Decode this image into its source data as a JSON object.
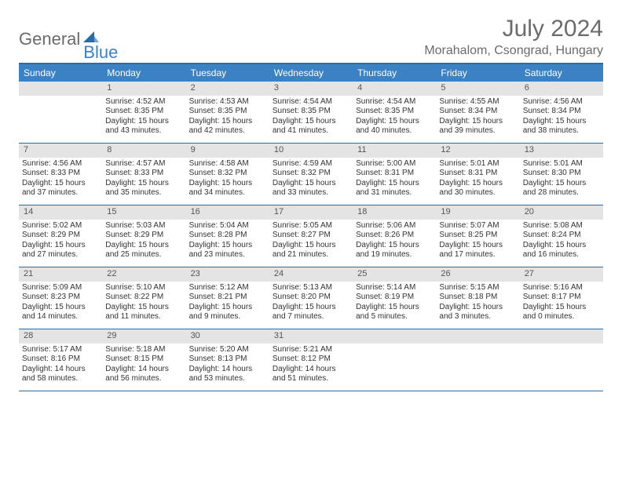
{
  "logo": {
    "text_gray": "General",
    "text_blue": "Blue"
  },
  "title": "July 2024",
  "location": "Morahalom, Csongrad, Hungary",
  "colors": {
    "header_bg": "#3b82c4",
    "header_border": "#2d6ca2",
    "daynum_bg": "#e4e4e4",
    "text": "#333333",
    "muted": "#6b6b6b"
  },
  "day_names": [
    "Sunday",
    "Monday",
    "Tuesday",
    "Wednesday",
    "Thursday",
    "Friday",
    "Saturday"
  ],
  "weeks": [
    [
      null,
      {
        "n": "1",
        "sunrise": "4:52 AM",
        "sunset": "8:35 PM",
        "daylight": "15 hours and 43 minutes."
      },
      {
        "n": "2",
        "sunrise": "4:53 AM",
        "sunset": "8:35 PM",
        "daylight": "15 hours and 42 minutes."
      },
      {
        "n": "3",
        "sunrise": "4:54 AM",
        "sunset": "8:35 PM",
        "daylight": "15 hours and 41 minutes."
      },
      {
        "n": "4",
        "sunrise": "4:54 AM",
        "sunset": "8:35 PM",
        "daylight": "15 hours and 40 minutes."
      },
      {
        "n": "5",
        "sunrise": "4:55 AM",
        "sunset": "8:34 PM",
        "daylight": "15 hours and 39 minutes."
      },
      {
        "n": "6",
        "sunrise": "4:56 AM",
        "sunset": "8:34 PM",
        "daylight": "15 hours and 38 minutes."
      }
    ],
    [
      {
        "n": "7",
        "sunrise": "4:56 AM",
        "sunset": "8:33 PM",
        "daylight": "15 hours and 37 minutes."
      },
      {
        "n": "8",
        "sunrise": "4:57 AM",
        "sunset": "8:33 PM",
        "daylight": "15 hours and 35 minutes."
      },
      {
        "n": "9",
        "sunrise": "4:58 AM",
        "sunset": "8:32 PM",
        "daylight": "15 hours and 34 minutes."
      },
      {
        "n": "10",
        "sunrise": "4:59 AM",
        "sunset": "8:32 PM",
        "daylight": "15 hours and 33 minutes."
      },
      {
        "n": "11",
        "sunrise": "5:00 AM",
        "sunset": "8:31 PM",
        "daylight": "15 hours and 31 minutes."
      },
      {
        "n": "12",
        "sunrise": "5:01 AM",
        "sunset": "8:31 PM",
        "daylight": "15 hours and 30 minutes."
      },
      {
        "n": "13",
        "sunrise": "5:01 AM",
        "sunset": "8:30 PM",
        "daylight": "15 hours and 28 minutes."
      }
    ],
    [
      {
        "n": "14",
        "sunrise": "5:02 AM",
        "sunset": "8:29 PM",
        "daylight": "15 hours and 27 minutes."
      },
      {
        "n": "15",
        "sunrise": "5:03 AM",
        "sunset": "8:29 PM",
        "daylight": "15 hours and 25 minutes."
      },
      {
        "n": "16",
        "sunrise": "5:04 AM",
        "sunset": "8:28 PM",
        "daylight": "15 hours and 23 minutes."
      },
      {
        "n": "17",
        "sunrise": "5:05 AM",
        "sunset": "8:27 PM",
        "daylight": "15 hours and 21 minutes."
      },
      {
        "n": "18",
        "sunrise": "5:06 AM",
        "sunset": "8:26 PM",
        "daylight": "15 hours and 19 minutes."
      },
      {
        "n": "19",
        "sunrise": "5:07 AM",
        "sunset": "8:25 PM",
        "daylight": "15 hours and 17 minutes."
      },
      {
        "n": "20",
        "sunrise": "5:08 AM",
        "sunset": "8:24 PM",
        "daylight": "15 hours and 16 minutes."
      }
    ],
    [
      {
        "n": "21",
        "sunrise": "5:09 AM",
        "sunset": "8:23 PM",
        "daylight": "15 hours and 14 minutes."
      },
      {
        "n": "22",
        "sunrise": "5:10 AM",
        "sunset": "8:22 PM",
        "daylight": "15 hours and 11 minutes."
      },
      {
        "n": "23",
        "sunrise": "5:12 AM",
        "sunset": "8:21 PM",
        "daylight": "15 hours and 9 minutes."
      },
      {
        "n": "24",
        "sunrise": "5:13 AM",
        "sunset": "8:20 PM",
        "daylight": "15 hours and 7 minutes."
      },
      {
        "n": "25",
        "sunrise": "5:14 AM",
        "sunset": "8:19 PM",
        "daylight": "15 hours and 5 minutes."
      },
      {
        "n": "26",
        "sunrise": "5:15 AM",
        "sunset": "8:18 PM",
        "daylight": "15 hours and 3 minutes."
      },
      {
        "n": "27",
        "sunrise": "5:16 AM",
        "sunset": "8:17 PM",
        "daylight": "15 hours and 0 minutes."
      }
    ],
    [
      {
        "n": "28",
        "sunrise": "5:17 AM",
        "sunset": "8:16 PM",
        "daylight": "14 hours and 58 minutes."
      },
      {
        "n": "29",
        "sunrise": "5:18 AM",
        "sunset": "8:15 PM",
        "daylight": "14 hours and 56 minutes."
      },
      {
        "n": "30",
        "sunrise": "5:20 AM",
        "sunset": "8:13 PM",
        "daylight": "14 hours and 53 minutes."
      },
      {
        "n": "31",
        "sunrise": "5:21 AM",
        "sunset": "8:12 PM",
        "daylight": "14 hours and 51 minutes."
      },
      null,
      null,
      null
    ]
  ],
  "labels": {
    "sunrise": "Sunrise:",
    "sunset": "Sunset:",
    "daylight": "Daylight:"
  }
}
